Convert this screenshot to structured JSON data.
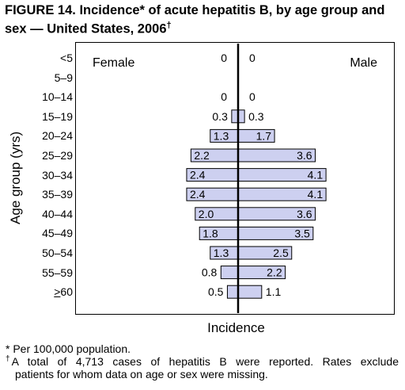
{
  "figure": {
    "title": "FIGURE 14. Incidence* of acute hepatitis B, by age group and sex — United States, 2006",
    "title_mark": "†",
    "footnote_1": "* Per 100,000 population.",
    "footnote_2_mark": "†",
    "footnote_2_line1": "A total of 4,713 cases of hepatitis B were reported. Rates exclude",
    "footnote_2_line2": "patients for whom data on age or sex were missing."
  },
  "colors": {
    "bar_fill": "#cdd0f0",
    "bar_stroke": "#000000",
    "center_line": "#000000"
  },
  "chart_data": {
    "type": "bar",
    "orientation": "horizontal-population-pyramid",
    "title": "FIGURE 14. Incidence* of acute hepatitis B, by age group and sex — United States, 2006",
    "xlabel": "Incidence",
    "ylabel": "Age group (yrs)",
    "categories": [
      "<5",
      "5–9",
      "10–14",
      "15–19",
      "20–24",
      "25–29",
      "30–34",
      "35–39",
      "40–44",
      "45–49",
      "50–54",
      "55–59",
      "≥60"
    ],
    "series": [
      {
        "name": "Female",
        "values": [
          null,
          null,
          0,
          0.3,
          1.3,
          2.2,
          2.4,
          2.4,
          2.0,
          1.8,
          1.3,
          0.8,
          0.5
        ],
        "labels": [
          "0",
          "",
          "0",
          "0.3",
          "1.3",
          "2.2",
          "2.4",
          "2.4",
          "2.0",
          "1.8",
          "1.3",
          "0.8",
          "0.5"
        ]
      },
      {
        "name": "Male",
        "values": [
          null,
          null,
          0,
          0.3,
          1.7,
          3.6,
          4.1,
          4.1,
          3.6,
          3.5,
          2.5,
          2.2,
          1.1
        ],
        "labels": [
          "0",
          "",
          "0",
          "0.3",
          "1.7",
          "3.6",
          "4.1",
          "4.1",
          "3.6",
          "3.5",
          "2.5",
          "2.2",
          "1.1"
        ]
      }
    ],
    "grid": false,
    "legend": "series names shown inside plot: Female top-left, Male top-right"
  }
}
